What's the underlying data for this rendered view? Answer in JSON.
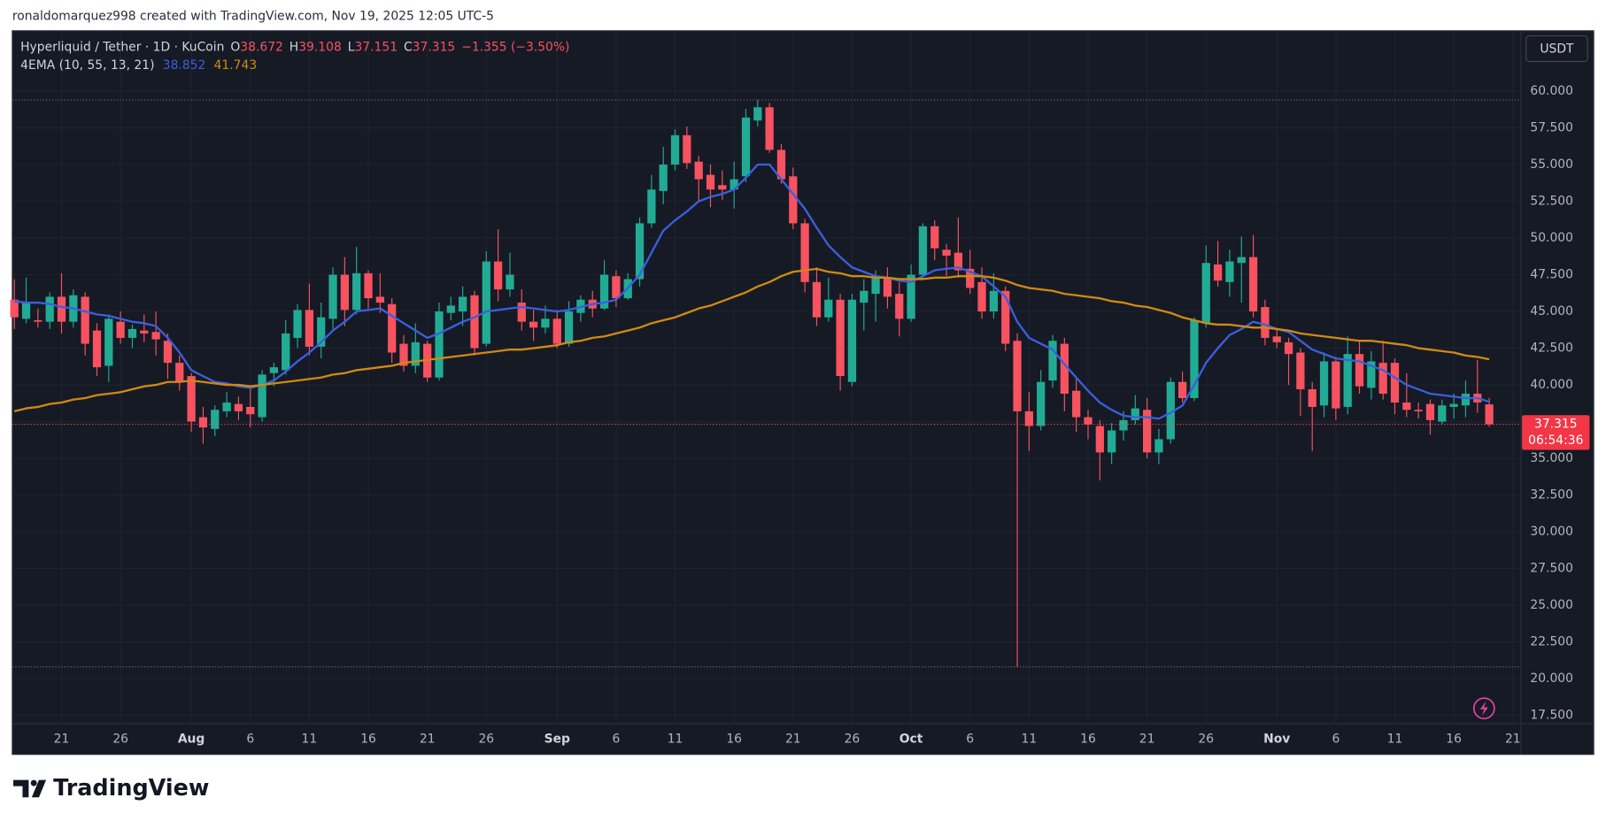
{
  "credit": "ronaldomarquez998 created with TradingView.com, Nov 19, 2025 12:05 UTC-5",
  "brand": "TradingView",
  "chart_data": {
    "type": "candlestick",
    "title": "Hyperliquid / Tether · 1D · KuCoin",
    "ohlc_labels": [
      "O",
      "H",
      "L",
      "C"
    ],
    "change_label": "−1.355 (−3.50%)",
    "indicator_label": "4EMA (10, 55, 13, 21)",
    "currency": "USDT",
    "countdown": "06:54:36",
    "color_up": "#22ab94",
    "color_down": "#f7525f",
    "categories": [
      null,
      null,
      null,
      null,
      "21",
      null,
      null,
      null,
      null,
      "26",
      null,
      null,
      null,
      null,
      null,
      "Aug",
      null,
      null,
      null,
      null,
      "6",
      null,
      null,
      null,
      null,
      "11",
      null,
      null,
      null,
      null,
      "16",
      null,
      null,
      null,
      null,
      "21",
      null,
      null,
      null,
      null,
      "26",
      null,
      null,
      null,
      null,
      null,
      "Sep",
      null,
      null,
      null,
      null,
      "6",
      null,
      null,
      null,
      null,
      "11",
      null,
      null,
      null,
      null,
      "16",
      null,
      null,
      null,
      null,
      "21",
      null,
      null,
      null,
      null,
      "26",
      null,
      null,
      null,
      null,
      "Oct",
      null,
      null,
      null,
      null,
      "6",
      null,
      null,
      null,
      null,
      "11",
      null,
      null,
      null,
      null,
      "16",
      null,
      null,
      null,
      null,
      "21",
      null,
      null,
      null,
      null,
      "26",
      null,
      null,
      null,
      null,
      null,
      "Nov",
      null,
      null,
      null,
      null,
      "6",
      null,
      null,
      null,
      null,
      "11",
      null,
      null,
      null,
      null,
      "16",
      null,
      null,
      null,
      null,
      "21"
    ],
    "open": [
      45.8,
      44.5,
      44.4,
      44.3,
      46.0,
      44.3,
      46.0,
      43.7,
      41.3,
      44.3,
      43.2,
      43.7,
      43.6,
      43.0,
      41.5,
      40.6,
      37.8,
      37.0,
      38.2,
      38.7,
      38.5,
      37.8,
      40.8,
      41.0,
      43.2,
      45.1,
      42.6,
      44.5,
      47.5,
      45.1,
      47.6,
      46.0,
      45.5,
      42.8,
      41.3,
      42.8,
      40.5,
      44.9,
      45.0,
      46.1,
      42.8,
      48.4,
      46.5,
      45.6,
      44.3,
      43.9,
      44.5,
      42.8,
      44.9,
      45.8,
      45.2,
      47.4,
      45.9,
      47.2,
      51.0,
      53.2,
      55.0,
      57.0,
      55.2,
      54.3,
      53.6,
      53.3,
      54.2,
      58.0,
      58.9,
      56.0,
      54.2,
      51.0,
      47.0,
      44.6,
      45.8,
      40.2,
      45.6,
      46.2,
      47.3,
      46.2,
      44.5,
      47.5,
      50.8,
      49.2,
      49.0,
      47.9,
      47.0,
      45.0,
      46.4,
      43.0,
      38.2,
      37.2,
      40.3,
      42.8,
      39.6,
      37.8,
      37.2,
      35.4,
      36.9,
      37.6,
      38.3,
      35.4,
      36.3,
      40.2,
      39.1,
      44.2,
      48.2,
      47.0,
      48.3,
      48.7,
      45.3,
      43.3,
      42.9,
      42.2,
      39.7,
      38.6,
      41.6,
      38.5,
      42.1,
      39.8,
      41.5,
      41.5,
      38.8,
      38.3,
      38.7,
      37.5,
      38.5,
      38.6,
      39.4,
      38.672,
      null,
      null
    ],
    "high": [
      47.2,
      47.3,
      45.2,
      46.3,
      47.6,
      46.5,
      46.3,
      44.2,
      44.8,
      45.0,
      44.1,
      44.8,
      45.0,
      43.5,
      42.0,
      40.8,
      38.5,
      38.6,
      39.5,
      39.2,
      39.8,
      41.0,
      41.5,
      44.4,
      45.5,
      46.9,
      45.6,
      48.0,
      48.7,
      49.4,
      47.8,
      47.6,
      45.9,
      43.4,
      44.2,
      43.0,
      45.6,
      46.0,
      46.7,
      46.4,
      49.1,
      50.6,
      49.0,
      46.5,
      45.1,
      45.4,
      45.1,
      45.7,
      46.1,
      46.4,
      48.5,
      47.8,
      47.6,
      51.4,
      54.3,
      56.2,
      57.4,
      57.6,
      55.6,
      55.0,
      54.6,
      55.2,
      58.8,
      59.4,
      59.2,
      56.4,
      54.8,
      51.3,
      48.0,
      47.3,
      46.2,
      46.2,
      47.2,
      47.8,
      48.0,
      47.0,
      48.2,
      51.0,
      51.2,
      49.6,
      51.4,
      49.2,
      48.0,
      47.6,
      46.7,
      43.5,
      39.5,
      41.0,
      43.4,
      43.2,
      40.4,
      38.3,
      37.6,
      37.4,
      38.2,
      39.3,
      39.1,
      37.0,
      40.5,
      40.9,
      44.6,
      49.5,
      49.8,
      49.2,
      50.1,
      50.2,
      45.8,
      43.8,
      43.2,
      42.5,
      40.2,
      42.2,
      41.9,
      43.3,
      43.0,
      42.3,
      43.0,
      41.8,
      40.8,
      38.8,
      39.0,
      39.0,
      39.4,
      40.3,
      41.7,
      39.108,
      null,
      null
    ],
    "low": [
      43.8,
      44.2,
      43.9,
      43.8,
      43.5,
      43.9,
      42.0,
      40.6,
      40.2,
      42.8,
      42.5,
      42.9,
      42.0,
      40.4,
      39.6,
      36.8,
      36.0,
      36.5,
      37.8,
      37.6,
      37.1,
      37.5,
      39.9,
      40.7,
      42.5,
      42.0,
      41.8,
      43.8,
      44.0,
      44.8,
      45.2,
      44.9,
      41.5,
      40.9,
      40.8,
      40.2,
      40.3,
      44.4,
      44.0,
      42.0,
      42.6,
      45.7,
      46.0,
      43.7,
      43.0,
      43.5,
      42.5,
      42.6,
      44.3,
      44.6,
      45.1,
      45.3,
      45.8,
      46.7,
      50.7,
      52.3,
      54.6,
      54.7,
      52.5,
      52.1,
      52.6,
      52.0,
      53.8,
      57.6,
      55.8,
      53.7,
      50.6,
      46.3,
      44.0,
      44.3,
      39.6,
      39.9,
      43.7,
      44.3,
      45.2,
      43.3,
      44.3,
      47.2,
      48.5,
      47.4,
      47.3,
      46.2,
      44.5,
      44.5,
      42.3,
      20.8,
      35.5,
      36.9,
      39.8,
      38.2,
      36.8,
      36.3,
      33.5,
      34.6,
      36.2,
      37.3,
      35.0,
      34.6,
      36.0,
      38.8,
      38.9,
      43.9,
      46.7,
      46.0,
      45.6,
      44.6,
      42.7,
      42.5,
      40.0,
      37.9,
      35.5,
      37.8,
      37.6,
      38.0,
      39.4,
      39.0,
      39.0,
      38.0,
      37.8,
      37.7,
      36.6,
      37.3,
      37.7,
      37.8,
      38.1,
      37.151,
      null,
      null
    ],
    "close": [
      44.6,
      45.6,
      44.3,
      46.0,
      44.3,
      46.1,
      42.8,
      41.2,
      44.5,
      43.2,
      43.8,
      43.5,
      43.1,
      41.5,
      40.2,
      37.5,
      37.1,
      38.3,
      38.8,
      38.2,
      38.0,
      40.7,
      41.2,
      43.5,
      45.1,
      42.6,
      44.6,
      47.5,
      45.1,
      47.6,
      45.9,
      45.6,
      42.2,
      41.3,
      42.9,
      40.5,
      45.0,
      45.4,
      46.0,
      42.5,
      48.4,
      46.5,
      47.5,
      44.3,
      43.9,
      44.5,
      42.8,
      45.0,
      45.8,
      45.2,
      47.5,
      45.9,
      47.2,
      51.0,
      53.3,
      55.0,
      57.0,
      55.1,
      54.0,
      53.3,
      53.3,
      54.0,
      58.2,
      58.9,
      56.0,
      54.0,
      51.0,
      47.0,
      44.6,
      45.8,
      40.6,
      45.8,
      46.4,
      47.3,
      46.0,
      44.5,
      47.5,
      50.8,
      49.3,
      48.8,
      47.8,
      46.6,
      45.0,
      46.4,
      42.8,
      38.2,
      37.2,
      40.2,
      43.0,
      39.4,
      37.8,
      37.3,
      35.4,
      36.9,
      37.6,
      38.4,
      35.4,
      36.3,
      40.2,
      39.1,
      44.4,
      48.3,
      47.1,
      48.4,
      48.7,
      45.0,
      43.2,
      42.9,
      42.1,
      39.7,
      38.5,
      41.6,
      38.4,
      42.1,
      39.9,
      41.6,
      39.4,
      38.8,
      38.3,
      38.2,
      37.6,
      38.6,
      38.7,
      39.4,
      38.8,
      37.315,
      null,
      null
    ],
    "series": [
      {
        "color": "#3b5fe0",
        "values": [
          45.7,
          45.6,
          45.6,
          45.5,
          45.3,
          45.2,
          45.0,
          44.8,
          44.7,
          44.5,
          44.3,
          44.2,
          44.0,
          43.2,
          42.2,
          41.0,
          40.6,
          40.2,
          40.1,
          39.9,
          39.8,
          40.0,
          40.3,
          40.9,
          41.6,
          42.2,
          42.9,
          43.7,
          44.3,
          45.0,
          45.1,
          45.2,
          44.7,
          44.2,
          43.7,
          43.2,
          43.5,
          43.9,
          44.3,
          44.6,
          45.0,
          45.1,
          45.2,
          45.3,
          45.2,
          45.1,
          45.0,
          45.1,
          45.3,
          45.5,
          45.6,
          45.8,
          46.6,
          47.5,
          49.0,
          50.5,
          51.2,
          51.8,
          52.5,
          52.8,
          53.0,
          53.3,
          54.1,
          55.0,
          55.0,
          54.0,
          53.0,
          52.0,
          50.7,
          49.5,
          48.7,
          48.0,
          47.7,
          47.4,
          47.3,
          47.1,
          47.0,
          47.4,
          47.8,
          47.9,
          48.0,
          47.7,
          47.4,
          46.7,
          46.0,
          44.3,
          43.2,
          42.8,
          42.4,
          41.4,
          40.5,
          39.6,
          38.8,
          38.3,
          37.9,
          37.8,
          37.8,
          37.7,
          38.1,
          38.6,
          40.0,
          41.5,
          42.5,
          43.4,
          43.8,
          44.3,
          44.1,
          43.8,
          43.6,
          43.0,
          42.4,
          42.1,
          41.8,
          41.7,
          41.6,
          41.3,
          41.0,
          40.5,
          40.0,
          39.7,
          39.4,
          39.3,
          39.2,
          39.1,
          39.1,
          38.852,
          null,
          null
        ]
      },
      {
        "color": "#d08a12",
        "values": [
          38.2,
          38.4,
          38.5,
          38.7,
          38.8,
          39.0,
          39.1,
          39.3,
          39.4,
          39.5,
          39.7,
          39.9,
          40.0,
          40.2,
          40.2,
          40.3,
          40.2,
          40.1,
          40.0,
          40.0,
          39.9,
          40.0,
          40.1,
          40.2,
          40.3,
          40.4,
          40.5,
          40.7,
          40.8,
          41.0,
          41.1,
          41.2,
          41.3,
          41.5,
          41.6,
          41.7,
          41.8,
          41.9,
          42.0,
          42.1,
          42.2,
          42.3,
          42.4,
          42.4,
          42.5,
          42.6,
          42.7,
          42.9,
          43.0,
          43.2,
          43.3,
          43.5,
          43.7,
          43.9,
          44.2,
          44.4,
          44.6,
          44.9,
          45.2,
          45.4,
          45.7,
          46.0,
          46.3,
          46.7,
          47.0,
          47.4,
          47.7,
          47.8,
          47.9,
          47.7,
          47.6,
          47.4,
          47.4,
          47.3,
          47.3,
          47.2,
          47.2,
          47.2,
          47.3,
          47.3,
          47.4,
          47.4,
          47.4,
          47.3,
          47.1,
          46.8,
          46.6,
          46.5,
          46.4,
          46.2,
          46.1,
          46.0,
          45.9,
          45.7,
          45.6,
          45.4,
          45.3,
          45.1,
          44.9,
          44.6,
          44.4,
          44.2,
          44.1,
          44.1,
          44.0,
          43.9,
          43.9,
          43.8,
          43.7,
          43.5,
          43.4,
          43.3,
          43.2,
          43.1,
          43.0,
          43.0,
          42.9,
          42.8,
          42.7,
          42.5,
          42.4,
          42.3,
          42.2,
          42.0,
          41.9,
          41.743,
          null,
          null
        ]
      }
    ],
    "ylim": [
      16.93,
      64.11
    ],
    "yticks": [
      {
        "value": 17.5,
        "label": "17.500"
      },
      {
        "value": 20,
        "label": "20.000"
      },
      {
        "value": 22.5,
        "label": "22.500"
      },
      {
        "value": 25,
        "label": "25.000"
      },
      {
        "value": 27.5,
        "label": "27.500"
      },
      {
        "value": 30,
        "label": "30.000"
      },
      {
        "value": 32.5,
        "label": "32.500"
      },
      {
        "value": 35,
        "label": "35.000"
      },
      {
        "value": 37.5,
        "label": "37.500"
      },
      {
        "value": 40,
        "label": "40.000"
      },
      {
        "value": 42.5,
        "label": "42.500"
      },
      {
        "value": 45,
        "label": "45.000"
      },
      {
        "value": 47.5,
        "label": "47.500"
      },
      {
        "value": 50,
        "label": "50.000"
      },
      {
        "value": 52.5,
        "label": "52.500"
      },
      {
        "value": 55,
        "label": "55.000"
      },
      {
        "value": 57.5,
        "label": "57.500"
      },
      {
        "value": 60,
        "label": "60.000"
      }
    ],
    "grid": true
  }
}
